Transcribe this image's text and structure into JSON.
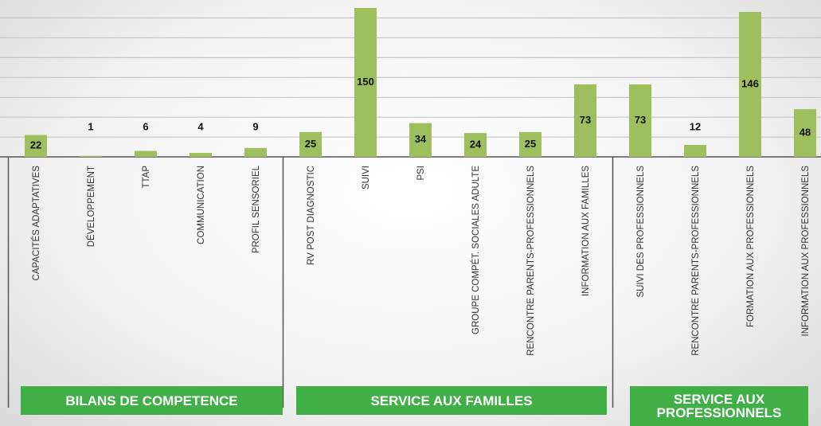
{
  "chart_data": {
    "type": "bar",
    "categories": [
      "CAPACITÉS ADAPTATIVES",
      "DÉVELOPPEMENT",
      "TTAP",
      "COMMUNICATION",
      "PROFIL SENSORIEL",
      "RV POST DIAGNOSTIC",
      "SUIVI",
      "PSI",
      "GROUPE COMPÉT. SOCIALES ADULTE",
      "RENCONTRE PARENTS-PROFESSIONNELS",
      "INFORMATION AUX FAMILLES",
      "SUIVI DES PROFESSIONNELS",
      "RENCONTRE PARENTS-PROFESSIONNELS",
      "FORMATION AUX PROFESSIONNELS",
      "INFORMATION AUX PROFESSIONNELS"
    ],
    "values": [
      22,
      1,
      6,
      4,
      9,
      25,
      150,
      34,
      24,
      25,
      73,
      73,
      12,
      146,
      48
    ],
    "color": "#9dbf5e",
    "groups": [
      {
        "name": "BILANS DE COMPETENCE",
        "count": 5
      },
      {
        "name": "SERVICE AUX FAMILLES",
        "count": 6
      },
      {
        "name": "SERVICE AUX PROFESSIONNELS",
        "count": 4
      }
    ],
    "ylim": [
      0,
      150
    ],
    "yticks": [
      0,
      20,
      40,
      60,
      80,
      100,
      120,
      140
    ],
    "grid": true
  }
}
